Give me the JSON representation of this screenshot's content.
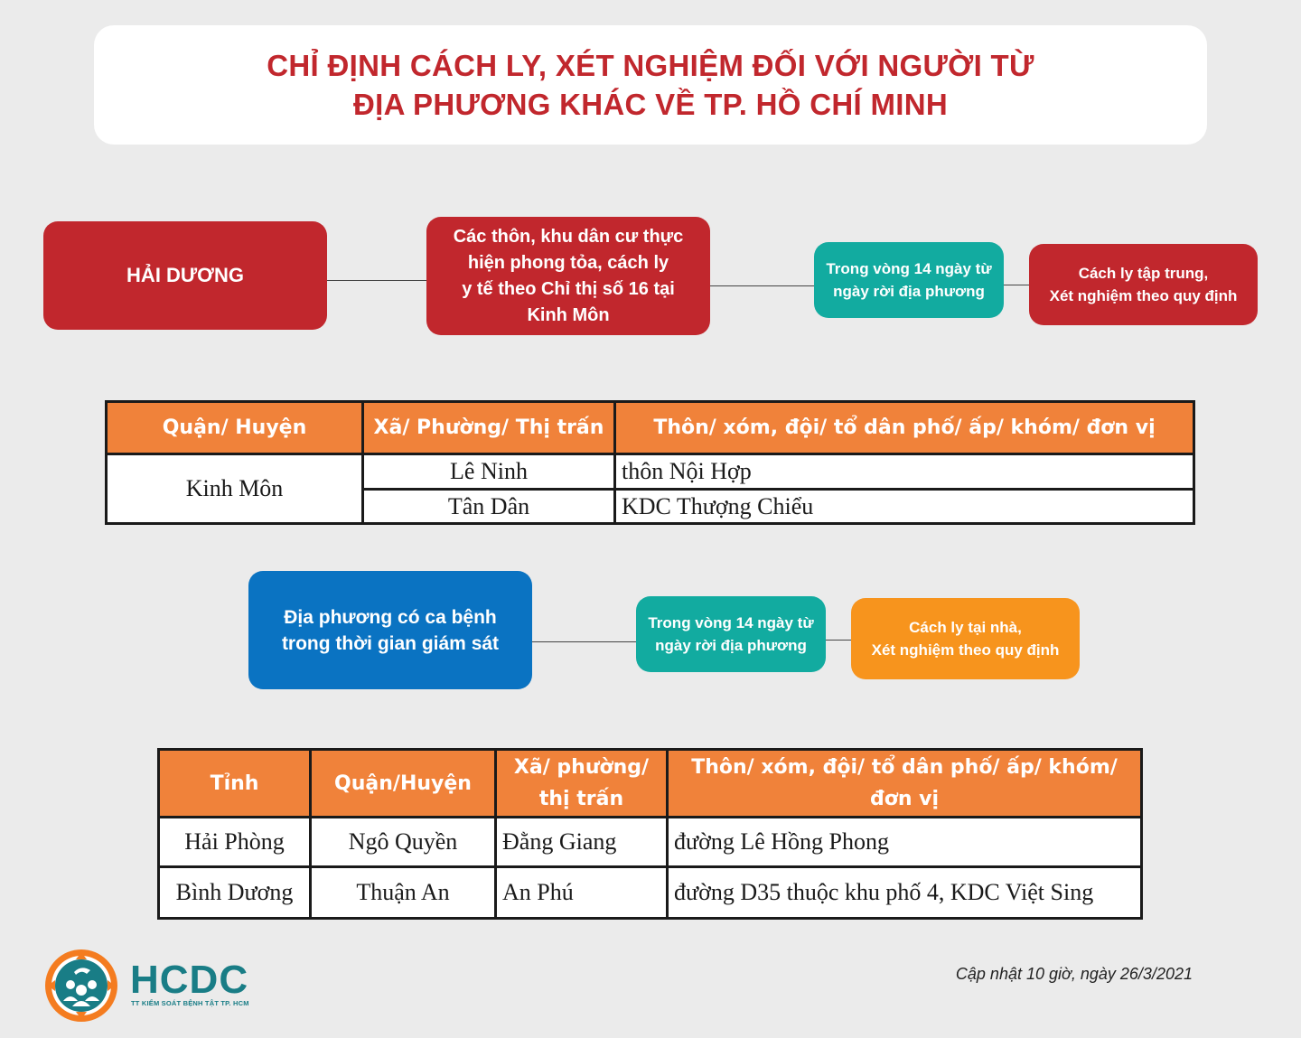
{
  "title": {
    "line1": "CHỈ ĐỊNH CÁCH LY, XÉT NGHIỆM ĐỐI VỚI NGƯỜI TỪ",
    "line2": "ĐỊA PHƯƠNG KHÁC VỀ TP. HỒ CHÍ MINH"
  },
  "flow1": {
    "source": "HẢI DƯƠNG",
    "condition": [
      "Các thôn, khu dân cư thực",
      "hiện phong tỏa, cách ly",
      "y tế theo Chỉ thị số 16 tại",
      "Kinh Môn"
    ],
    "timeframe": [
      "Trong vòng 14 ngày từ",
      "ngày rời địa phương"
    ],
    "action": [
      "Cách ly tập trung,",
      "Xét nghiệm theo quy định"
    ]
  },
  "table1": {
    "headers": [
      "Quận/ Huyện",
      "Xã/ Phường/ Thị trấn",
      "Thôn/ xóm, đội/ tổ dân phố/ ấp/ khóm/ đơn vị"
    ],
    "district": "Kinh Môn",
    "rows": [
      {
        "ward": "Lê Ninh",
        "village": "thôn Nội Hợp"
      },
      {
        "ward": "Tân Dân",
        "village": "KDC Thượng Chiểu"
      }
    ]
  },
  "flow2": {
    "source": [
      "Địa phương có ca bệnh",
      "trong thời gian giám sát"
    ],
    "timeframe": [
      "Trong vòng 14 ngày từ",
      "ngày rời địa phương"
    ],
    "action": [
      "Cách ly tại nhà,",
      "Xét nghiệm theo quy định"
    ]
  },
  "table2": {
    "headers": [
      "Tỉnh",
      "Quận/Huyện",
      "Xã/ phường/",
      "thị trấn",
      "Thôn/ xóm, đội/ tổ dân phố/ ấp/ khóm/",
      "đơn vị"
    ],
    "rows": [
      {
        "province": "Hải Phòng",
        "district": "Ngô Quyền",
        "ward": "Đằng Giang",
        "village": "đường Lê Hồng Phong"
      },
      {
        "province": "Bình Dương",
        "district": "Thuận An",
        "ward": "An Phú",
        "village": "đường D35 thuộc khu phố 4, KDC Việt Sing"
      }
    ]
  },
  "logo": {
    "name": "HCDC",
    "subtitle": "TT KIỂM SOÁT BỆNH TẬT TP. HCM"
  },
  "footer": {
    "updated": "Cập nhật 10 giờ, ngày 26/3/2021"
  },
  "colors": {
    "red": "#c1272d",
    "teal": "#12aba0",
    "blue": "#0a73c2",
    "orange": "#f7941d",
    "table_header": "#f0823a",
    "logo": "#197d86"
  }
}
